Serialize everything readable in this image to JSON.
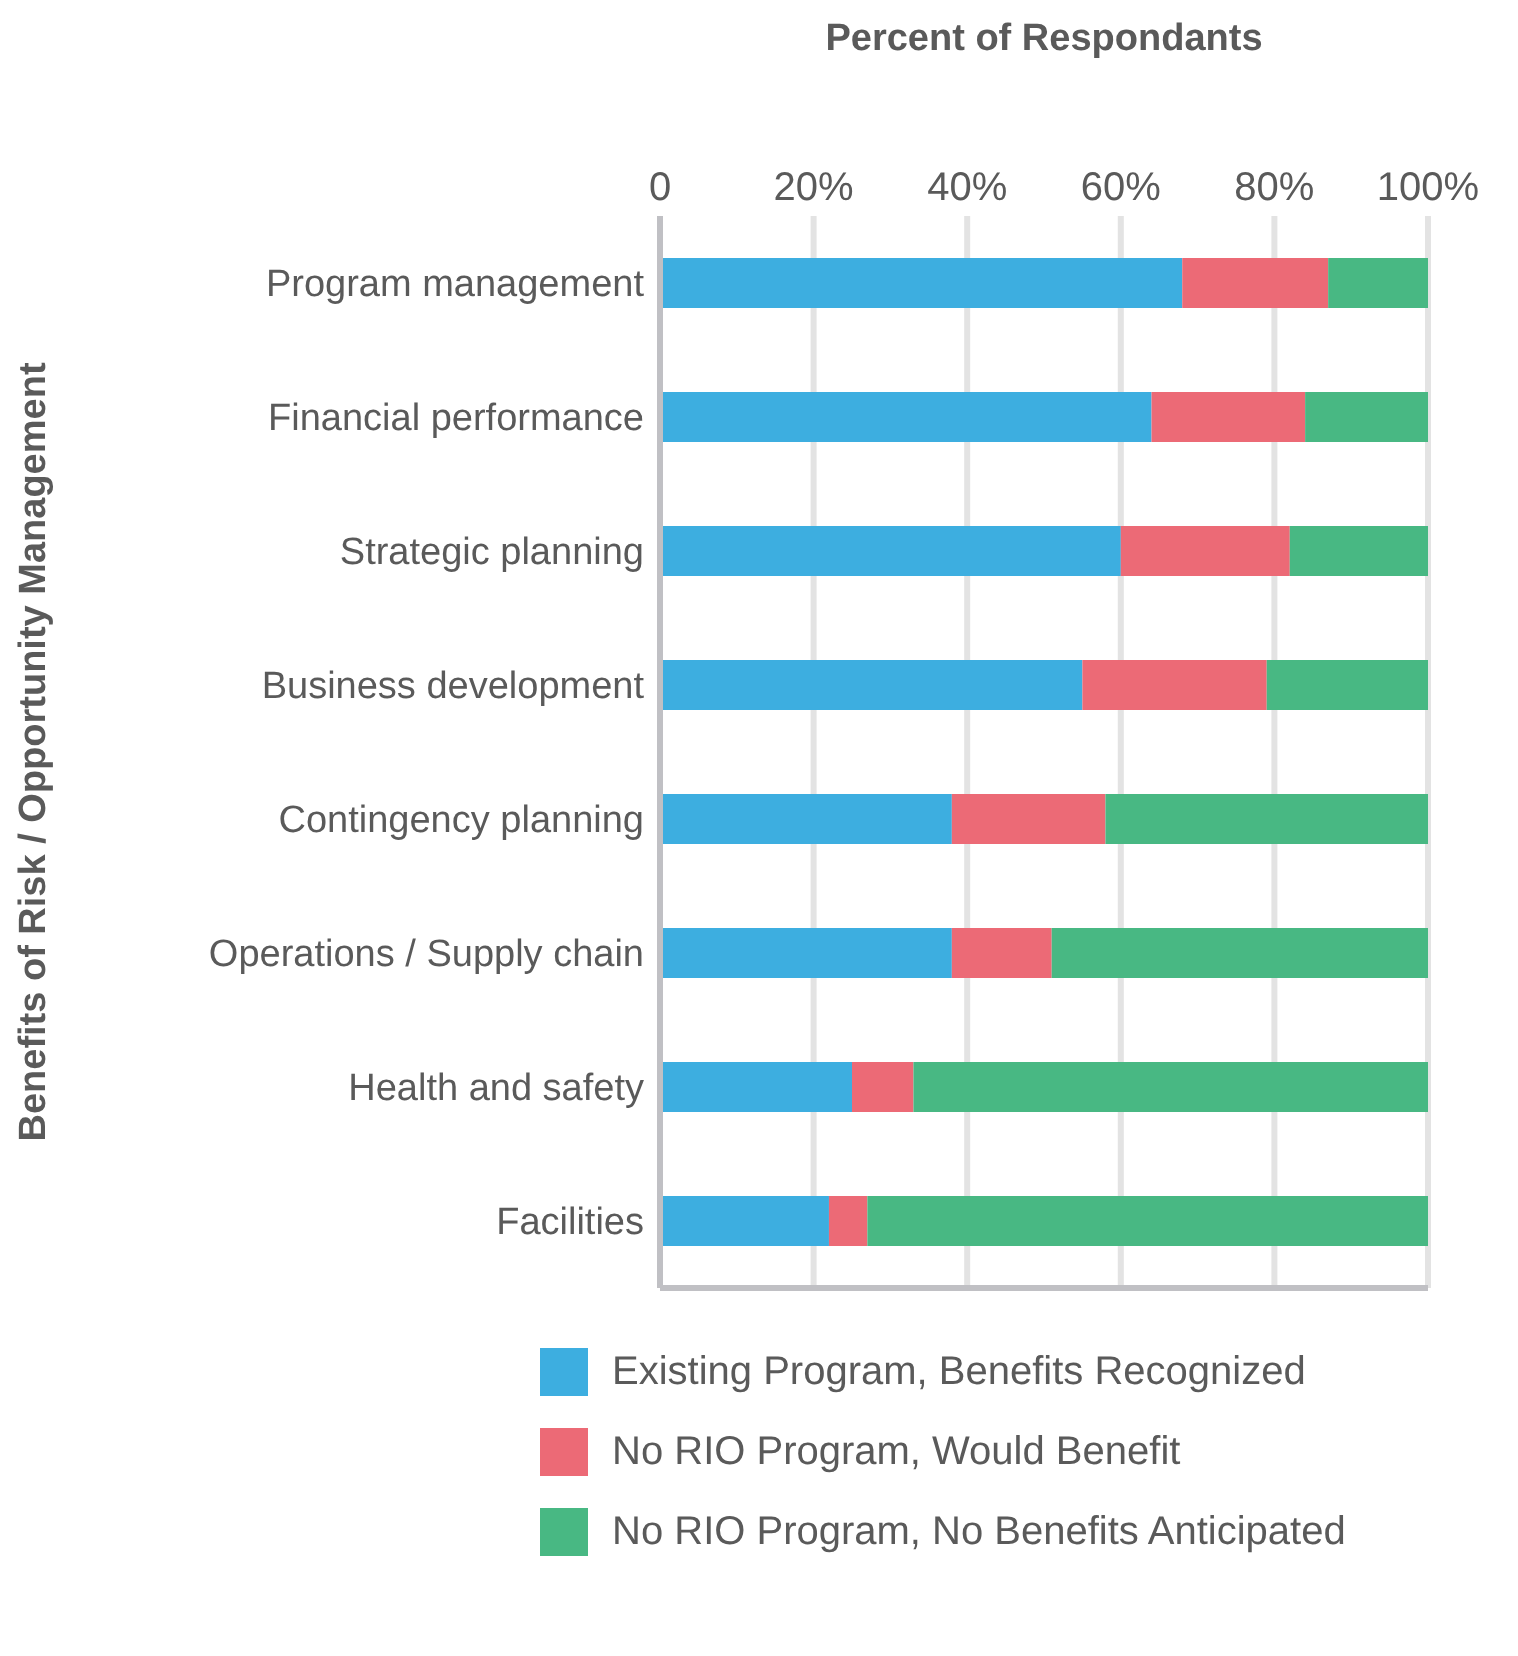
{
  "chart_data": {
    "type": "bar",
    "orientation": "horizontal",
    "stacked": true,
    "xlabel": "Percent of Respondants",
    "ylabel": "Benefits of Risk / Opportunity Management",
    "categories": [
      "Program management",
      "Financial performance",
      "Strategic planning",
      "Business development",
      "Contingency planning",
      "Operations / Supply chain",
      "Health and safety",
      "Facilities"
    ],
    "series": [
      {
        "name": "Existing Program, Benefits Recognized",
        "color": "#3daee0",
        "values": [
          68,
          64,
          60,
          55,
          38,
          38,
          25,
          22
        ]
      },
      {
        "name": "No RIO Program, Would Benefit",
        "color": "#ec6a76",
        "values": [
          19,
          20,
          22,
          24,
          20,
          13,
          8,
          5
        ]
      },
      {
        "name": "No RIO Program, No Benefits Anticipated",
        "color": "#48b883",
        "values": [
          13,
          16,
          18,
          21,
          42,
          49,
          67,
          73
        ]
      }
    ],
    "xlim": [
      0,
      100
    ],
    "xticks": [
      0,
      {
        "value": 20,
        "label": "20%"
      },
      {
        "value": 40,
        "label": "40%"
      },
      {
        "value": 60,
        "label": "60%"
      },
      {
        "value": 80,
        "label": "80%"
      },
      {
        "value": 100,
        "label": "100%"
      }
    ],
    "grid": "x",
    "legend": "bottom"
  }
}
